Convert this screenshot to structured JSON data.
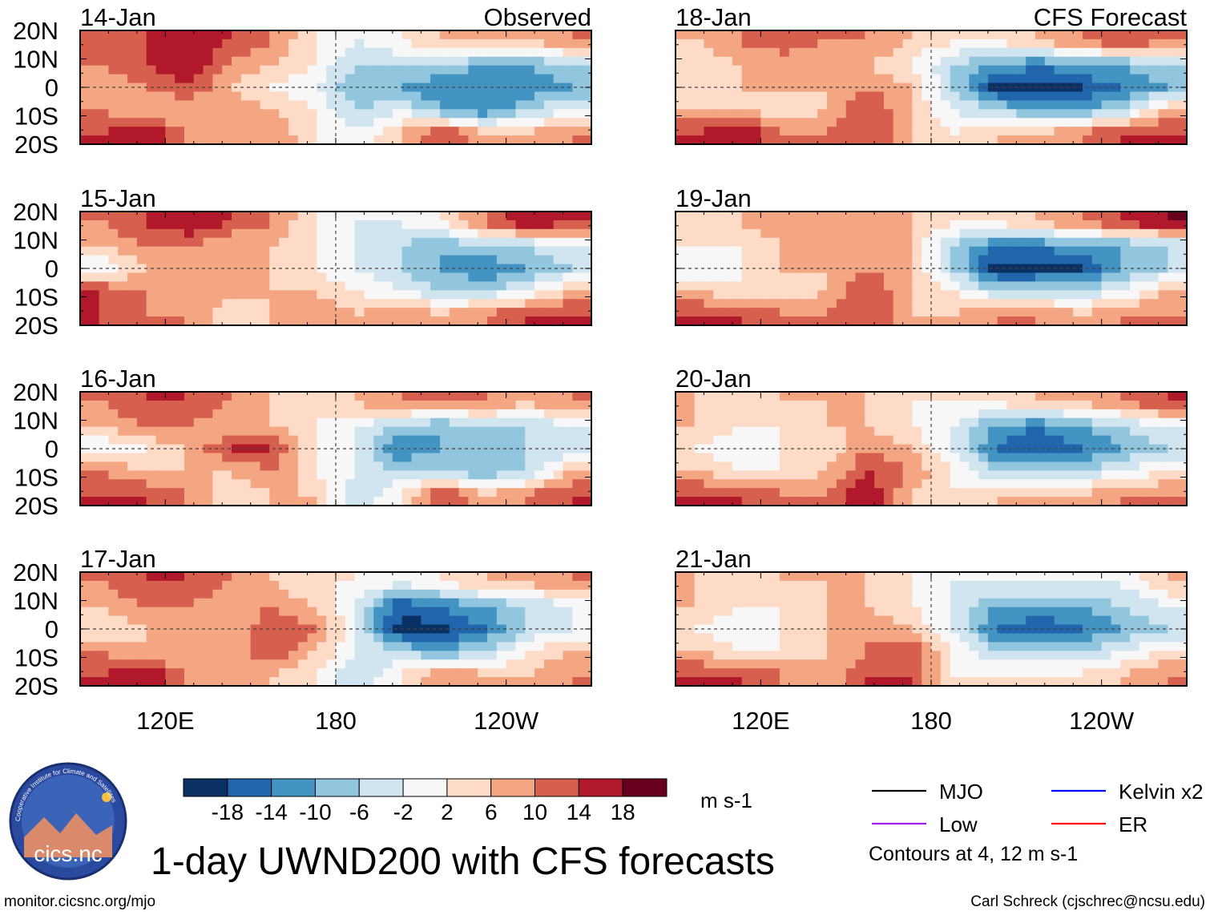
{
  "chart_data": {
    "type": "heatmap",
    "title": "1-day UWND200 with CFS forecasts",
    "units": "m s-1",
    "left_column_label": "Observed",
    "right_column_label": "CFS Forecast",
    "lat_ticks": [
      "20N",
      "10N",
      "0",
      "10S",
      "20S"
    ],
    "lon_ticks": [
      "120E",
      "180",
      "120W"
    ],
    "lon_range": [
      90,
      270
    ],
    "lat_range": [
      -20,
      20
    ],
    "grid_note": "approximate coarse field, rows north to south, columns 15-degree bins west to east",
    "levels": [
      -18,
      -14,
      -10,
      -6,
      -2,
      2,
      6,
      10,
      14,
      18
    ],
    "level_labels": [
      "-18",
      "-14",
      "-10",
      "-6",
      "-2",
      "2",
      "6",
      "10",
      "14",
      "18"
    ],
    "colors": [
      "#0b3063",
      "#2166ac",
      "#4393c3",
      "#92c5de",
      "#d1e5f0",
      "#f7f7f7",
      "#fddbc7",
      "#f4a582",
      "#d6604d",
      "#b2182b",
      "#67001f"
    ],
    "panels": [
      {
        "date": "14-Jan",
        "column": "observed",
        "field": [
          [
            10,
            14,
            18,
            14,
            10,
            2,
            -2,
            2,
            6,
            6,
            6,
            10
          ],
          [
            10,
            14,
            18,
            10,
            6,
            2,
            -6,
            -6,
            -6,
            -10,
            -10,
            -6
          ],
          [
            6,
            10,
            14,
            6,
            2,
            -2,
            -10,
            -10,
            -14,
            -14,
            -14,
            -10
          ],
          [
            10,
            6,
            6,
            10,
            6,
            2,
            -6,
            -2,
            -10,
            -14,
            -6,
            -2
          ],
          [
            14,
            18,
            10,
            6,
            10,
            2,
            -2,
            6,
            14,
            6,
            6,
            10
          ]
        ]
      },
      {
        "date": "15-Jan",
        "column": "observed",
        "field": [
          [
            10,
            14,
            18,
            14,
            10,
            2,
            -2,
            -2,
            2,
            10,
            18,
            14
          ],
          [
            6,
            10,
            10,
            6,
            6,
            2,
            -2,
            -6,
            -10,
            -6,
            -6,
            -2
          ],
          [
            -2,
            6,
            6,
            10,
            6,
            2,
            -2,
            -6,
            -10,
            -14,
            -10,
            -6
          ],
          [
            14,
            10,
            6,
            10,
            6,
            6,
            2,
            -2,
            -6,
            -6,
            -2,
            6
          ],
          [
            14,
            10,
            10,
            2,
            6,
            10,
            6,
            10,
            6,
            10,
            14,
            14
          ]
        ]
      },
      {
        "date": "16-Jan",
        "column": "observed",
        "field": [
          [
            10,
            14,
            14,
            10,
            6,
            2,
            6,
            10,
            10,
            10,
            6,
            10
          ],
          [
            6,
            10,
            10,
            6,
            6,
            2,
            -2,
            -6,
            -10,
            -6,
            -6,
            -2
          ],
          [
            -2,
            2,
            6,
            14,
            14,
            2,
            -2,
            -14,
            -10,
            -10,
            -6,
            -6
          ],
          [
            10,
            6,
            6,
            6,
            10,
            2,
            -2,
            -6,
            -6,
            -10,
            -6,
            6
          ],
          [
            14,
            14,
            10,
            2,
            6,
            6,
            -6,
            2,
            14,
            6,
            10,
            14
          ]
        ]
      },
      {
        "date": "17-Jan",
        "column": "observed",
        "field": [
          [
            10,
            14,
            14,
            10,
            6,
            2,
            2,
            -2,
            2,
            6,
            6,
            10
          ],
          [
            6,
            10,
            10,
            6,
            10,
            6,
            -2,
            -18,
            -14,
            -10,
            -6,
            -2
          ],
          [
            2,
            6,
            10,
            6,
            14,
            10,
            -2,
            -19,
            -19,
            -14,
            -6,
            -2
          ],
          [
            10,
            6,
            6,
            6,
            14,
            6,
            -2,
            -6,
            -10,
            -6,
            2,
            6
          ],
          [
            14,
            18,
            10,
            6,
            6,
            2,
            -6,
            2,
            10,
            6,
            6,
            10
          ]
        ]
      },
      {
        "date": "18-Jan",
        "column": "forecast",
        "field": [
          [
            6,
            10,
            14,
            10,
            10,
            6,
            2,
            2,
            6,
            10,
            14,
            10
          ],
          [
            2,
            6,
            6,
            6,
            6,
            2,
            -6,
            -10,
            -14,
            -10,
            -10,
            -6
          ],
          [
            2,
            6,
            6,
            6,
            10,
            6,
            -6,
            -19,
            -19,
            -18,
            -14,
            -10
          ],
          [
            6,
            6,
            2,
            6,
            14,
            6,
            -2,
            -6,
            -10,
            -10,
            -6,
            6
          ],
          [
            14,
            18,
            10,
            10,
            14,
            6,
            2,
            6,
            6,
            10,
            14,
            14
          ]
        ]
      },
      {
        "date": "19-Jan",
        "column": "forecast",
        "field": [
          [
            2,
            6,
            10,
            6,
            6,
            6,
            2,
            2,
            6,
            10,
            14,
            18
          ],
          [
            2,
            2,
            6,
            6,
            6,
            6,
            -6,
            -14,
            -14,
            -10,
            -10,
            -6
          ],
          [
            -2,
            2,
            6,
            6,
            10,
            6,
            -6,
            -19,
            -19,
            -18,
            -10,
            -6
          ],
          [
            6,
            2,
            2,
            6,
            14,
            6,
            2,
            -6,
            -6,
            -6,
            -2,
            6
          ],
          [
            14,
            14,
            10,
            10,
            14,
            6,
            6,
            10,
            10,
            6,
            10,
            10
          ]
        ]
      },
      {
        "date": "20-Jan",
        "column": "forecast",
        "field": [
          [
            6,
            2,
            6,
            6,
            6,
            2,
            2,
            2,
            6,
            6,
            10,
            14
          ],
          [
            6,
            2,
            2,
            6,
            6,
            2,
            -2,
            -10,
            -14,
            -10,
            -6,
            -2
          ],
          [
            2,
            -2,
            2,
            2,
            10,
            6,
            -2,
            -14,
            -18,
            -14,
            -10,
            -6
          ],
          [
            6,
            2,
            2,
            6,
            14,
            10,
            2,
            -6,
            -6,
            -6,
            -2,
            2
          ],
          [
            14,
            14,
            10,
            10,
            18,
            6,
            2,
            6,
            6,
            6,
            10,
            10
          ]
        ]
      },
      {
        "date": "21-Jan",
        "column": "forecast",
        "field": [
          [
            6,
            2,
            6,
            6,
            6,
            2,
            -2,
            -2,
            -2,
            -2,
            -2,
            6
          ],
          [
            6,
            2,
            2,
            6,
            6,
            2,
            -2,
            -10,
            -10,
            -10,
            -6,
            -2
          ],
          [
            2,
            -2,
            2,
            6,
            10,
            6,
            -2,
            -14,
            -18,
            -14,
            -10,
            -6
          ],
          [
            6,
            2,
            2,
            6,
            10,
            14,
            2,
            -6,
            -6,
            -6,
            -2,
            2
          ],
          [
            14,
            14,
            10,
            6,
            14,
            14,
            2,
            2,
            2,
            2,
            6,
            10
          ]
        ]
      }
    ],
    "legend": [
      {
        "label": "MJO",
        "color": "#000000"
      },
      {
        "label": "Kelvin x2",
        "color": "#0000ff"
      },
      {
        "label": "Low",
        "color": "#a020f0"
      },
      {
        "label": "ER",
        "color": "#ff0000"
      }
    ],
    "contour_note": "Contours at 4, 12 m s-1"
  },
  "footer": {
    "url": "monitor.cicsnc.org/mjo",
    "credit": "Carl Schreck (cjschrec@ncsu.edu)"
  },
  "logo": {
    "text": "cics.nc",
    "ring_text": "Cooperative Institute for Climate and Satellites"
  }
}
